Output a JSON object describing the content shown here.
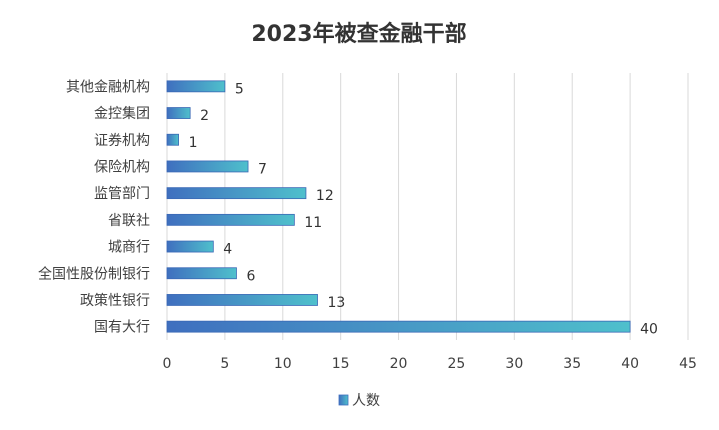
{
  "chart_data": {
    "type": "bar",
    "orientation": "horizontal",
    "title": "2023年被查金融干部",
    "categories": [
      "其他金融机构",
      "金控集团",
      "证券机构",
      "保险机构",
      "监管部门",
      "省联社",
      "城商行",
      "全国性股份制银行",
      "政策性银行",
      "国有大行"
    ],
    "series": [
      {
        "name": "人数",
        "values": [
          5,
          2,
          1,
          7,
          12,
          11,
          4,
          6,
          13,
          40
        ]
      }
    ],
    "xlim": [
      0,
      45
    ],
    "x_ticks": [
      "0",
      "5",
      "10",
      "15",
      "20",
      "25",
      "30",
      "35",
      "40",
      "45"
    ],
    "grid": true,
    "legend_position": "bottom",
    "colors": {
      "bar_start": "#3F6FBF",
      "bar_end": "#4FC0CC",
      "grid": "#D9D9D9",
      "text": "#404040"
    }
  }
}
